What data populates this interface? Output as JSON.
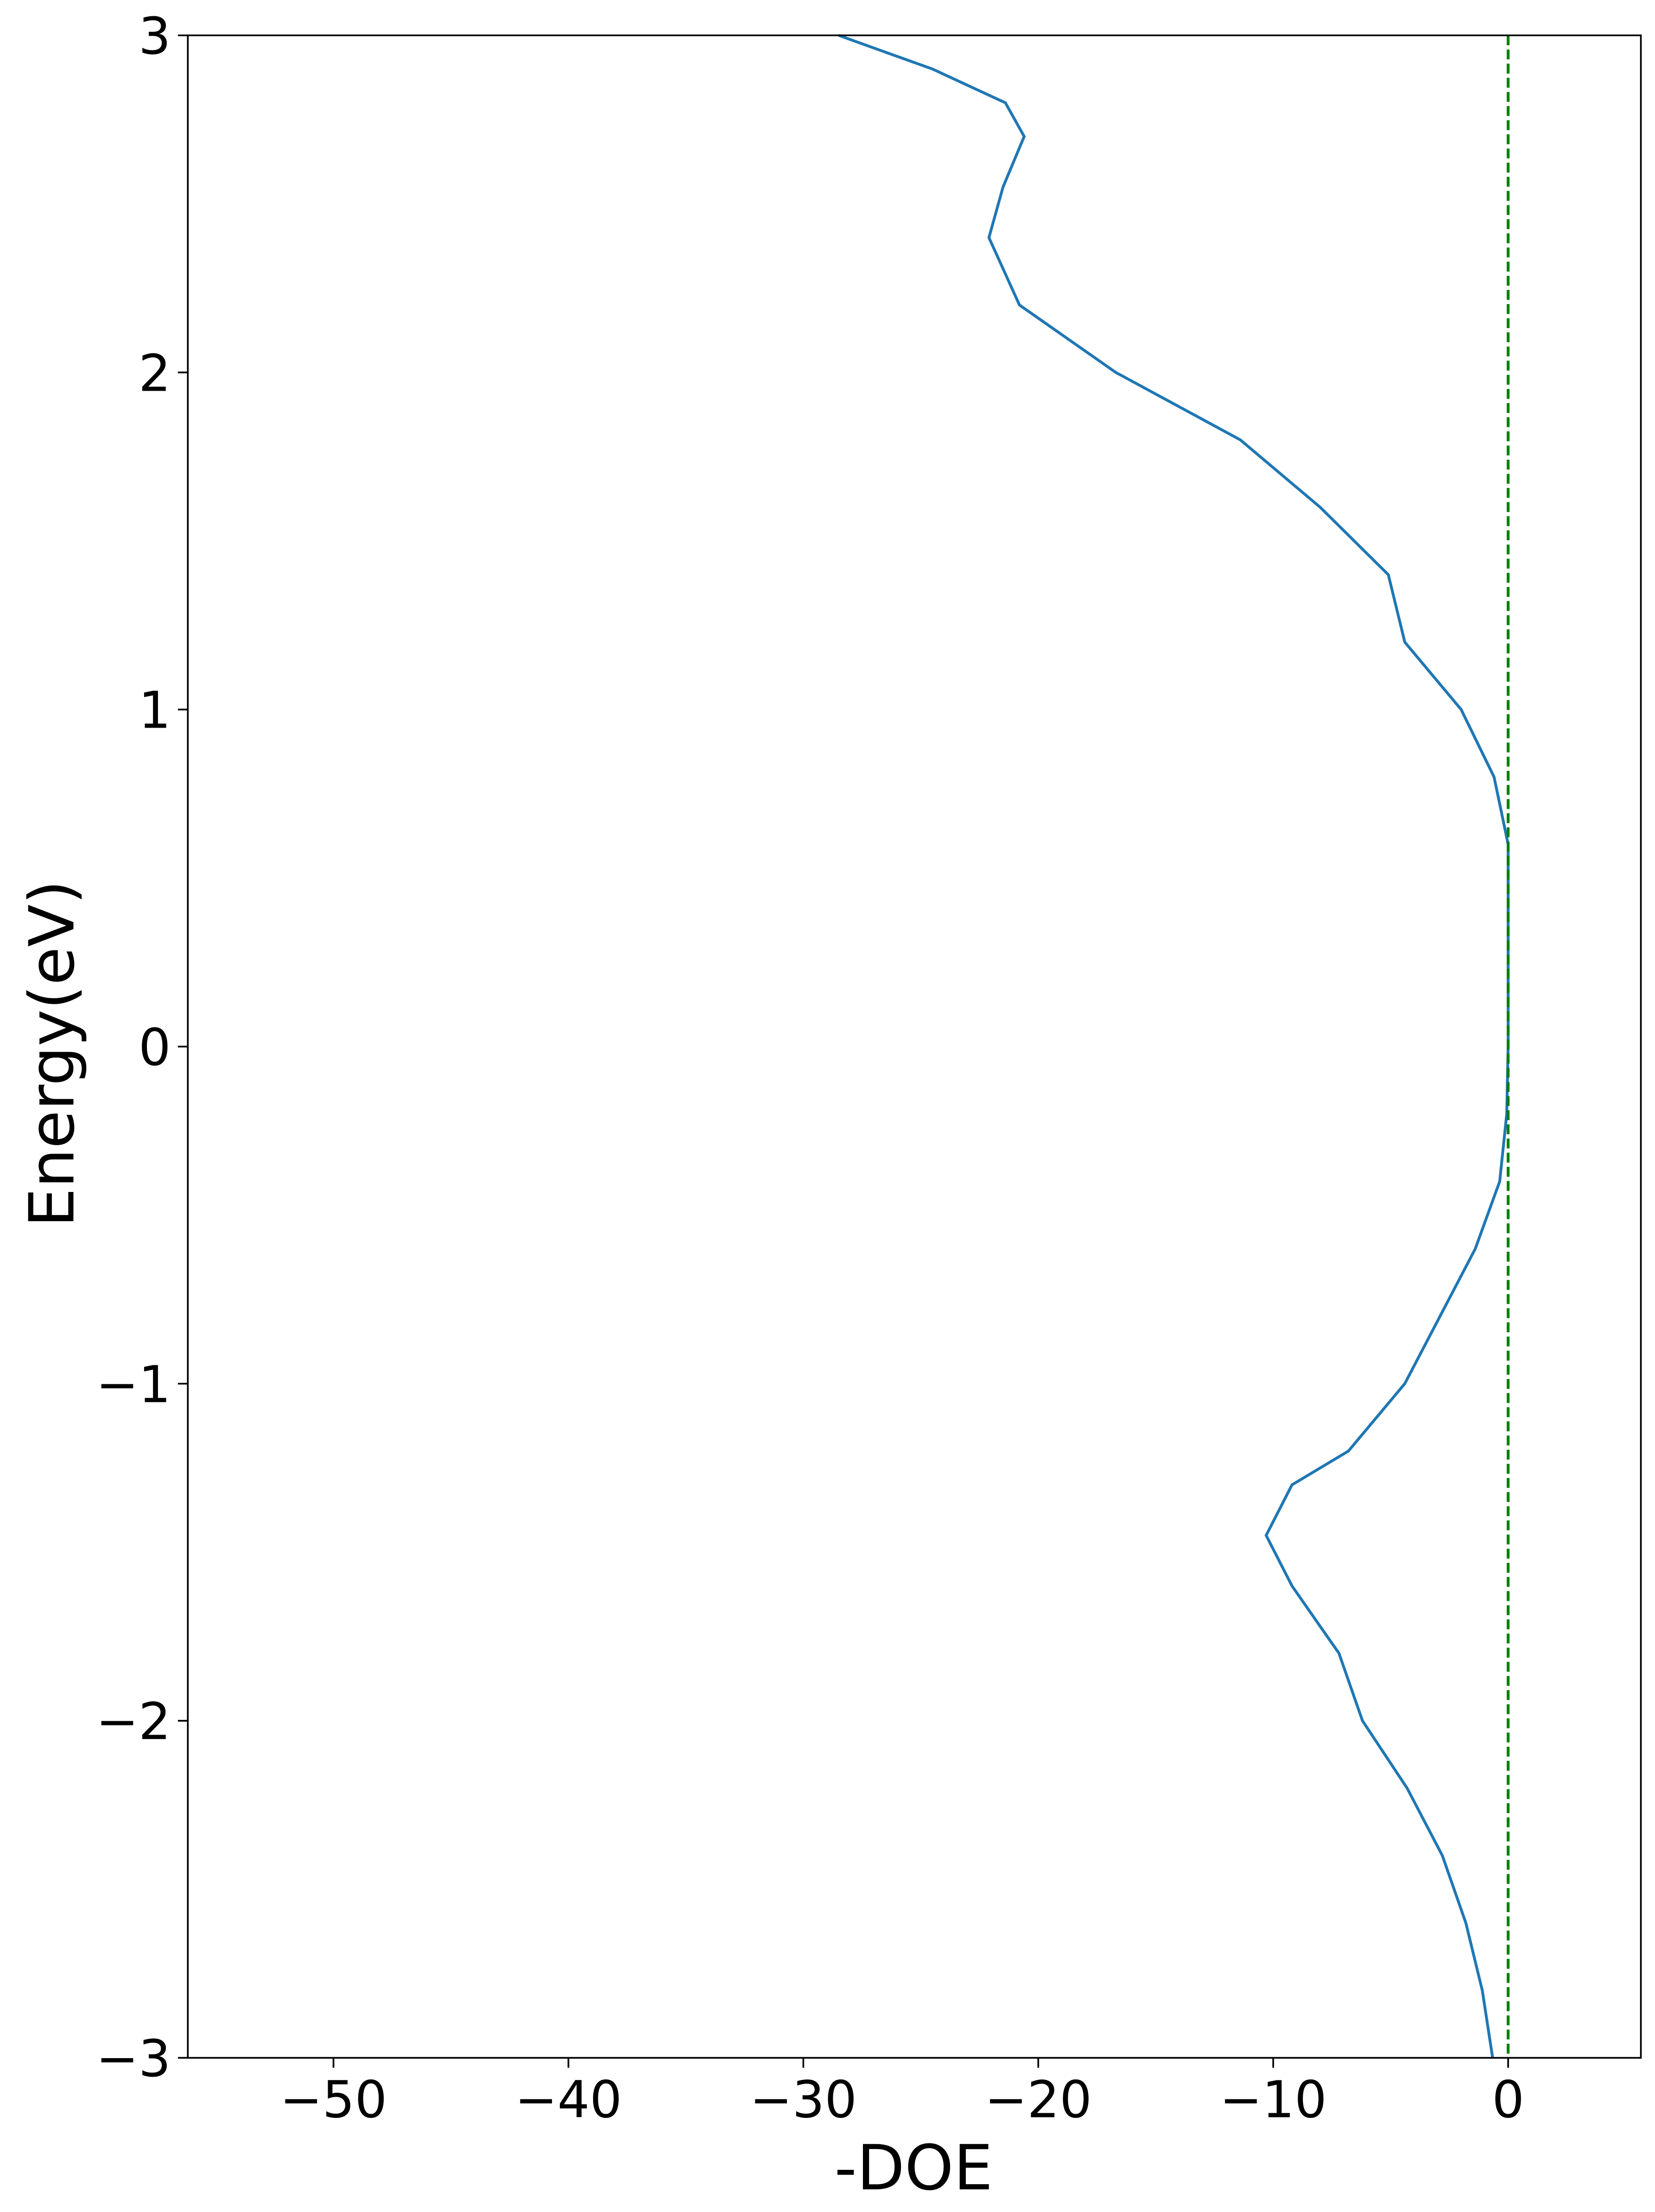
{
  "chart_data": {
    "type": "line",
    "xlabel": "-DOE",
    "ylabel": "Energy(eV)",
    "x": [
      -0.66,
      -1.1,
      -1.8,
      -2.8,
      -4.3,
      -6.2,
      -7.2,
      -9.2,
      -10.3,
      -9.2,
      -6.8,
      -4.4,
      -2.9,
      -1.4,
      -0.36,
      -0.06,
      0,
      0,
      0,
      -0.6,
      -2.0,
      -4.4,
      -5.1,
      -8.0,
      -11.4,
      -16.7,
      -20.8,
      -22.1,
      -21.5,
      -20.6,
      -21.4,
      -24.5,
      -28.5
    ],
    "values": [
      -3,
      -2.8,
      -2.6,
      -2.4,
      -2.2,
      -2.0,
      -1.8,
      -1.6,
      -1.45,
      -1.3,
      -1.2,
      -1.0,
      -0.8,
      -0.6,
      -0.4,
      -0.2,
      0,
      0.4,
      0.6,
      0.8,
      1.0,
      1.2,
      1.4,
      1.6,
      1.8,
      2.0,
      2.2,
      2.4,
      2.55,
      2.7,
      2.8,
      2.9,
      3.0
    ],
    "color": "#1f77b4",
    "vline": 0,
    "vline_color": "#008000",
    "xlim": [
      -56.2,
      5.65
    ],
    "ylim": [
      -3,
      3
    ],
    "xticks": [
      {
        "value": -50,
        "label": "−50"
      },
      {
        "value": -40,
        "label": "−40"
      },
      {
        "value": -30,
        "label": "−30"
      },
      {
        "value": -20,
        "label": "−20"
      },
      {
        "value": -10,
        "label": "−10"
      },
      0
    ],
    "yticks": [
      {
        "value": -3,
        "label": "−3"
      },
      {
        "value": -2,
        "label": "−2"
      },
      {
        "value": -1,
        "label": "−1"
      },
      0,
      1,
      2,
      3
    ]
  }
}
